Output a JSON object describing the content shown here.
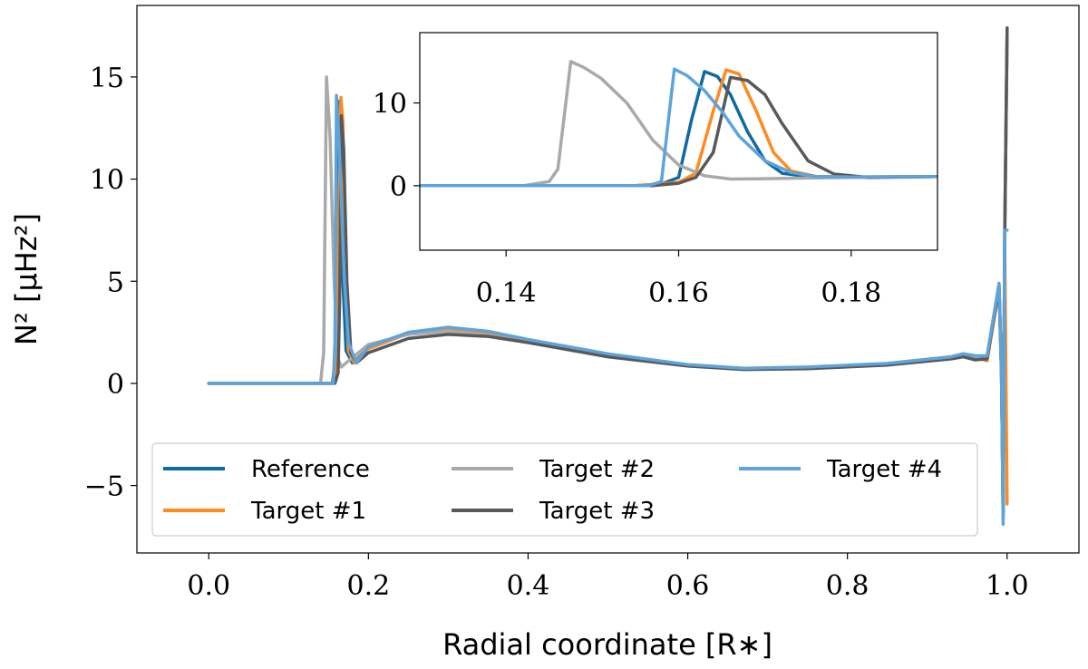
{
  "colors": {
    "reference": "#0f6aa3",
    "target1": "#ff8a1f",
    "target2": "#a9a9a9",
    "target3": "#595959",
    "target4": "#5ea3da"
  },
  "chart_data": [
    {
      "type": "line",
      "title": "",
      "xlabel": "Radial coordinate [R∗]",
      "ylabel": "N² [µHz²]",
      "xlim": [
        -0.09,
        1.09
      ],
      "ylim": [
        -8.3,
        18.5
      ],
      "xticks": [
        0.0,
        0.2,
        0.4,
        0.6,
        0.8,
        1.0
      ],
      "xtick_labels": [
        "0.0",
        "0.2",
        "0.4",
        "0.6",
        "0.8",
        "1.0"
      ],
      "yticks": [
        -5,
        0,
        5,
        10,
        15
      ],
      "ytick_labels": [
        "−5",
        "0",
        "5",
        "10",
        "15"
      ],
      "grid": false,
      "legend_position": "bottom-left",
      "legend_columns": 3,
      "series": [
        {
          "name": "Reference",
          "color_key": "reference",
          "x": [
            0.0,
            0.155,
            0.158,
            0.161,
            0.163,
            0.1655,
            0.168,
            0.172,
            0.18,
            0.2,
            0.25,
            0.3,
            0.35,
            0.4,
            0.5,
            0.6,
            0.67,
            0.75,
            0.85,
            0.93,
            0.945,
            0.96,
            0.975,
            0.99,
            0.993,
            0.995,
            0.997,
            1.0
          ],
          "y": [
            0.0,
            0.0,
            1.0,
            8.0,
            13.8,
            12.5,
            5.0,
            1.6,
            1.0,
            1.7,
            2.45,
            2.7,
            2.5,
            2.1,
            1.4,
            0.9,
            0.72,
            0.78,
            0.95,
            1.3,
            1.45,
            1.35,
            1.3,
            4.8,
            0.5,
            -6.3,
            7.0,
            17.3
          ]
        },
        {
          "name": "Target #1",
          "color_key": "target1",
          "x": [
            0.0,
            0.157,
            0.16,
            0.163,
            0.1655,
            0.168,
            0.171,
            0.175,
            0.182,
            0.2,
            0.25,
            0.3,
            0.35,
            0.4,
            0.5,
            0.6,
            0.67,
            0.75,
            0.85,
            0.93,
            0.945,
            0.96,
            0.975,
            0.99,
            0.993,
            0.995,
            0.997,
            1.0
          ],
          "y": [
            0.0,
            0.0,
            1.0,
            8.0,
            14.0,
            12.8,
            5.0,
            1.6,
            1.0,
            1.7,
            2.45,
            2.7,
            2.5,
            2.1,
            1.4,
            0.9,
            0.72,
            0.78,
            0.95,
            1.3,
            1.45,
            1.3,
            1.1,
            4.6,
            0.3,
            -6.0,
            7.0,
            -5.9
          ]
        },
        {
          "name": "Target #2",
          "color_key": "target2",
          "x": [
            0.0,
            0.14,
            0.144,
            0.1475,
            0.152,
            0.157,
            0.162,
            0.166,
            0.175,
            0.2,
            0.25,
            0.3,
            0.35,
            0.4,
            0.5,
            0.6,
            0.67,
            0.75,
            0.85,
            0.93,
            0.945,
            0.96,
            0.975,
            0.99,
            0.993,
            0.995,
            0.997,
            1.0
          ],
          "y": [
            0.0,
            0.0,
            1.5,
            15.0,
            12.0,
            5.0,
            1.2,
            0.8,
            1.1,
            1.9,
            2.4,
            2.55,
            2.35,
            2.0,
            1.35,
            0.9,
            0.72,
            0.78,
            0.95,
            1.25,
            1.4,
            1.3,
            1.2,
            4.7,
            0.4,
            -6.3,
            7.5,
            16.5
          ]
        },
        {
          "name": "Target #3",
          "color_key": "target3",
          "x": [
            0.0,
            0.158,
            0.162,
            0.164,
            0.166,
            0.169,
            0.173,
            0.178,
            0.185,
            0.2,
            0.25,
            0.3,
            0.35,
            0.4,
            0.5,
            0.6,
            0.67,
            0.75,
            0.85,
            0.93,
            0.945,
            0.96,
            0.975,
            0.99,
            0.993,
            0.995,
            0.997,
            1.0
          ],
          "y": [
            0.0,
            0.0,
            0.5,
            4.0,
            13.1,
            11.5,
            5.0,
            1.5,
            1.0,
            1.5,
            2.2,
            2.4,
            2.3,
            2.0,
            1.3,
            0.85,
            0.68,
            0.72,
            0.9,
            1.2,
            1.3,
            1.15,
            1.2,
            4.7,
            0.5,
            -6.5,
            7.0,
            17.4
          ]
        },
        {
          "name": "Target #4",
          "color_key": "target4",
          "x": [
            0.0,
            0.156,
            0.158,
            0.16,
            0.163,
            0.166,
            0.17,
            0.175,
            0.185,
            0.2,
            0.25,
            0.3,
            0.35,
            0.4,
            0.5,
            0.6,
            0.67,
            0.75,
            0.85,
            0.93,
            0.945,
            0.96,
            0.975,
            0.99,
            0.993,
            0.995,
            0.997,
            1.0
          ],
          "y": [
            0.0,
            0.0,
            2.0,
            14.1,
            12.0,
            9.0,
            5.0,
            2.0,
            1.0,
            1.8,
            2.5,
            2.75,
            2.55,
            2.15,
            1.45,
            0.92,
            0.74,
            0.8,
            0.98,
            1.3,
            1.45,
            1.35,
            1.35,
            4.9,
            0.5,
            -6.9,
            7.5,
            7.5
          ]
        }
      ]
    },
    {
      "type": "line",
      "title": "",
      "xlabel": "",
      "ylabel": "",
      "xlim": [
        0.13,
        0.19
      ],
      "ylim": [
        -7.8,
        18.5
      ],
      "xticks": [
        0.14,
        0.16,
        0.18
      ],
      "xtick_labels": [
        "0.14",
        "0.16",
        "0.18"
      ],
      "yticks": [
        0,
        10
      ],
      "ytick_labels": [
        "0",
        "10"
      ],
      "grid": false,
      "legend_position": "none",
      "series": [
        {
          "name": "Reference",
          "color_key": "reference",
          "x": [
            0.13,
            0.155,
            0.158,
            0.16,
            0.1615,
            0.163,
            0.1645,
            0.166,
            0.168,
            0.17,
            0.172,
            0.175,
            0.18,
            0.19
          ],
          "y": [
            0.0,
            0.0,
            0.2,
            1.0,
            8.0,
            13.8,
            13.2,
            11.0,
            6.5,
            3.0,
            1.5,
            1.1,
            1.05,
            1.1
          ]
        },
        {
          "name": "Target #1",
          "color_key": "target1",
          "x": [
            0.13,
            0.155,
            0.16,
            0.162,
            0.164,
            0.1655,
            0.167,
            0.169,
            0.171,
            0.173,
            0.176,
            0.18,
            0.19
          ],
          "y": [
            0.0,
            0.0,
            0.4,
            1.5,
            9.0,
            14.0,
            13.5,
            9.0,
            4.0,
            1.8,
            1.1,
            1.05,
            1.1
          ]
        },
        {
          "name": "Target #2",
          "color_key": "target2",
          "x": [
            0.13,
            0.142,
            0.145,
            0.146,
            0.1475,
            0.149,
            0.151,
            0.154,
            0.157,
            0.16,
            0.163,
            0.166,
            0.17,
            0.18,
            0.19
          ],
          "y": [
            0.0,
            0.0,
            0.5,
            2.0,
            15.0,
            14.3,
            13.0,
            10.0,
            5.5,
            2.5,
            1.2,
            0.8,
            0.85,
            1.0,
            1.1
          ]
        },
        {
          "name": "Target #3",
          "color_key": "target3",
          "x": [
            0.13,
            0.157,
            0.16,
            0.162,
            0.164,
            0.166,
            0.168,
            0.17,
            0.172,
            0.175,
            0.178,
            0.182,
            0.19
          ],
          "y": [
            0.0,
            0.0,
            0.3,
            1.0,
            4.0,
            13.1,
            12.7,
            11.0,
            7.5,
            3.0,
            1.4,
            1.0,
            1.1
          ]
        },
        {
          "name": "Target #4",
          "color_key": "target4",
          "x": [
            0.13,
            0.1565,
            0.158,
            0.1595,
            0.161,
            0.163,
            0.165,
            0.167,
            0.17,
            0.173,
            0.176,
            0.18,
            0.19
          ],
          "y": [
            0.0,
            0.0,
            0.5,
            14.1,
            13.3,
            11.5,
            9.0,
            6.0,
            3.0,
            1.6,
            1.1,
            1.05,
            1.1
          ]
        }
      ]
    }
  ],
  "legend": {
    "items": [
      {
        "label": "Reference",
        "color_key": "reference"
      },
      {
        "label": "Target #1",
        "color_key": "target1"
      },
      {
        "label": "Target #2",
        "color_key": "target2"
      },
      {
        "label": "Target #3",
        "color_key": "target3"
      },
      {
        "label": "Target #4",
        "color_key": "target4"
      }
    ]
  }
}
